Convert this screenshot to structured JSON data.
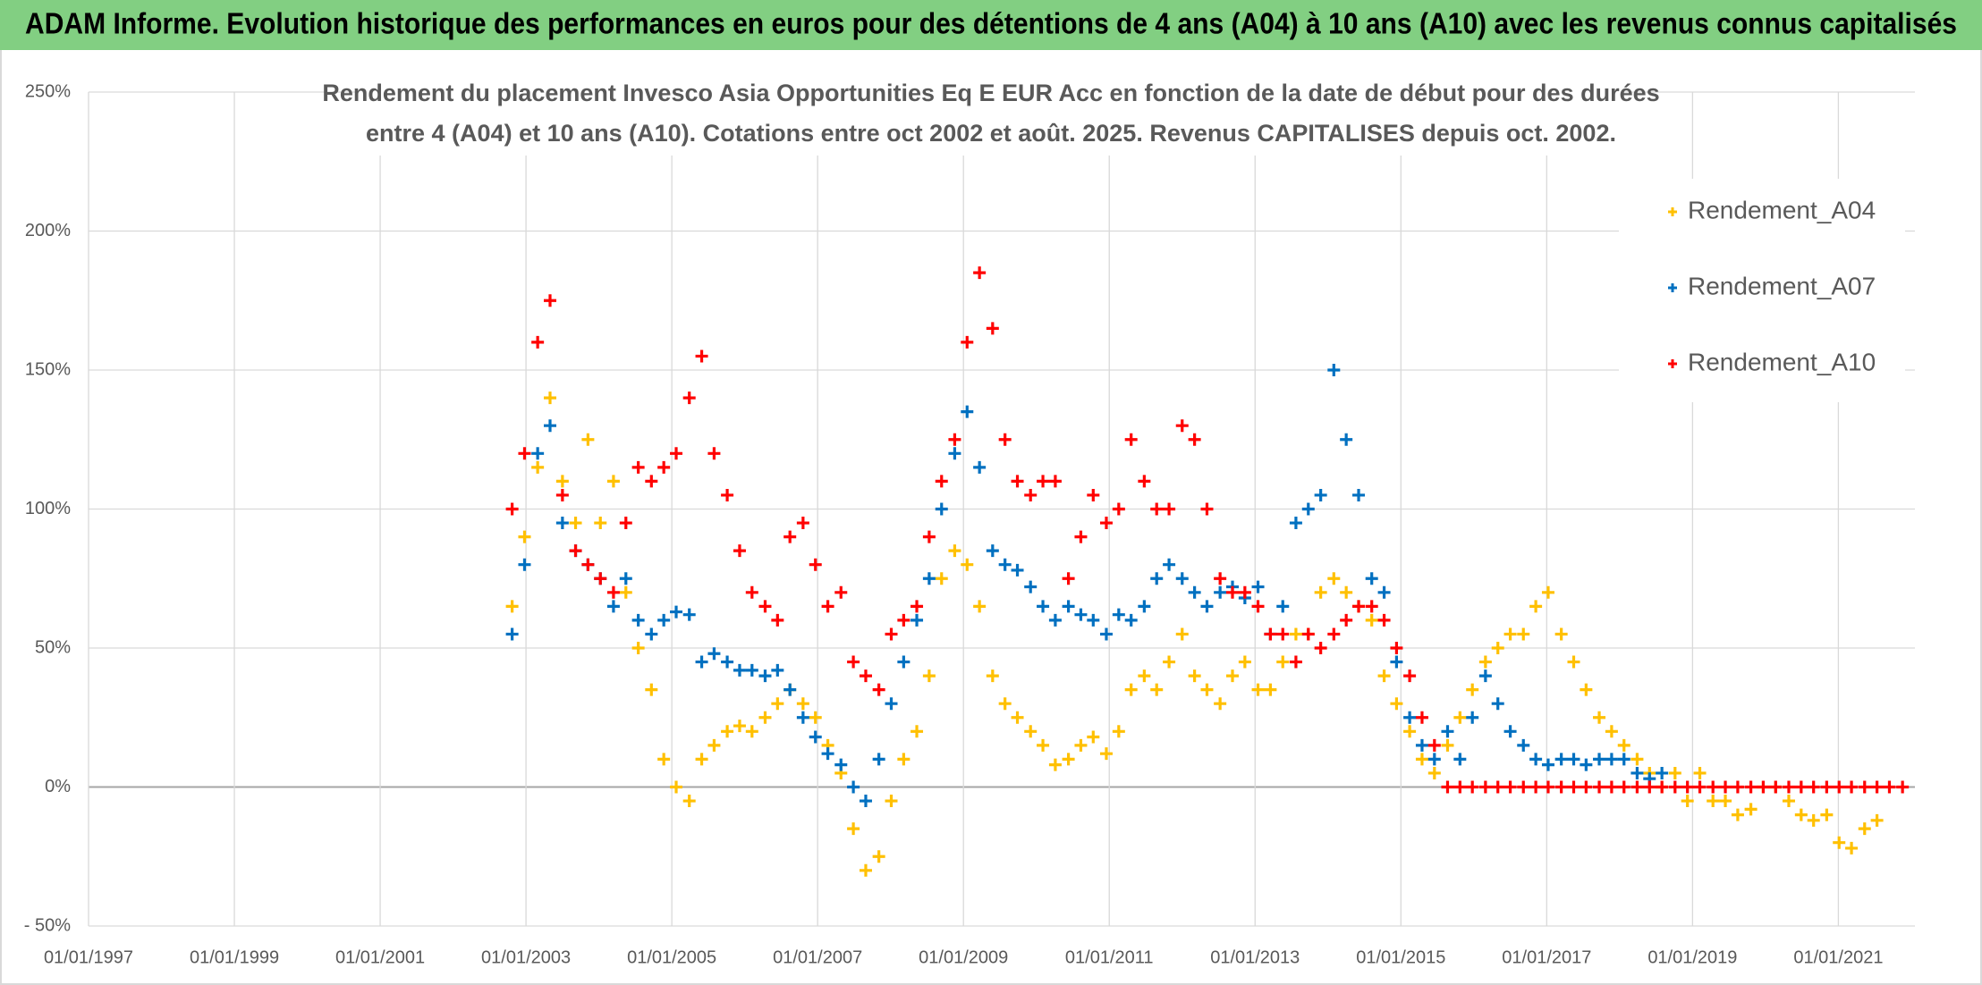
{
  "chart_data": {
    "type": "scatter",
    "title": "ADAM Informe. Evolution historique des performances en euros pour des détentions de 4 ans (A04) à 10 ans (A10) avec les revenus connus capitalisés",
    "subtitle": [
      "Rendement du placement Invesco Asia Opportunities Eq E EUR Acc en fonction de la date de début pour des durées",
      "entre 4 (A04) et 10 ans (A10). Cotations entre oct 2002 et août. 2025. Revenus CAPITALISES depuis oct. 2002."
    ],
    "legend": "upper right",
    "grid": true,
    "xlim": [
      1997,
      2022.05
    ],
    "xticks": [
      {
        "value": 1997,
        "label": "01/01/1997"
      },
      {
        "value": 1999,
        "label": "01/01/1999"
      },
      {
        "value": 2001,
        "label": "01/01/2001"
      },
      {
        "value": 2003,
        "label": "01/01/2003"
      },
      {
        "value": 2005,
        "label": "01/01/2005"
      },
      {
        "value": 2007,
        "label": "01/01/2007"
      },
      {
        "value": 2009,
        "label": "01/01/2009"
      },
      {
        "value": 2011,
        "label": "01/01/2011"
      },
      {
        "value": 2013,
        "label": "01/01/2013"
      },
      {
        "value": 2015,
        "label": "01/01/2015"
      },
      {
        "value": 2017,
        "label": "01/01/2017"
      },
      {
        "value": 2019,
        "label": "01/01/2019"
      },
      {
        "value": 2021,
        "label": "01/01/2021"
      }
    ],
    "ylim": [
      -50,
      250
    ],
    "yticks": [
      {
        "value": -50,
        "label": "- 50%"
      },
      {
        "value": 0,
        "label": "0%"
      },
      {
        "value": 50,
        "label": "50%"
      },
      {
        "value": 100,
        "label": "100%"
      },
      {
        "value": 150,
        "label": "150%"
      },
      {
        "value": 200,
        "label": "200%"
      },
      {
        "value": 250,
        "label": "250%"
      }
    ],
    "x": [
      2002.81,
      2002.98,
      2003.16,
      2003.33,
      2003.5,
      2003.68,
      2003.85,
      2004.02,
      2004.2,
      2004.37,
      2004.54,
      2004.72,
      2004.89,
      2005.06,
      2005.24,
      2005.41,
      2005.58,
      2005.76,
      2005.93,
      2006.1,
      2006.28,
      2006.45,
      2006.62,
      2006.8,
      2006.97,
      2007.14,
      2007.32,
      2007.49,
      2007.66,
      2007.84,
      2008.01,
      2008.18,
      2008.36,
      2008.53,
      2008.7,
      2008.88,
      2009.05,
      2009.22,
      2009.4,
      2009.57,
      2009.74,
      2009.92,
      2010.09,
      2010.26,
      2010.44,
      2010.61,
      2010.78,
      2010.96,
      2011.13,
      2011.3,
      2011.48,
      2011.65,
      2011.82,
      2012.0,
      2012.17,
      2012.34,
      2012.52,
      2012.69,
      2012.86,
      2013.04,
      2013.21,
      2013.38,
      2013.56,
      2013.73,
      2013.9,
      2014.08,
      2014.25,
      2014.42,
      2014.6,
      2014.77,
      2014.94,
      2015.12,
      2015.29,
      2015.46,
      2015.64,
      2015.81,
      2015.98,
      2016.16,
      2016.33,
      2016.5,
      2016.68,
      2016.85,
      2017.02,
      2017.2,
      2017.37,
      2017.54,
      2017.72,
      2017.89,
      2018.06,
      2018.24,
      2018.41,
      2018.58,
      2018.76,
      2018.93,
      2019.1,
      2019.28,
      2019.45,
      2019.62,
      2019.8,
      2019.97,
      2020.14,
      2020.32,
      2020.49,
      2020.66,
      2020.84,
      2021.01,
      2021.18,
      2021.36,
      2021.53,
      2021.7,
      2021.88
    ],
    "series": [
      {
        "name": "Rendement_A04",
        "color": "#FFC000",
        "values": [
          65,
          90,
          115,
          140,
          110,
          95,
          125,
          95,
          110,
          70,
          50,
          35,
          10,
          0,
          -5,
          10,
          15,
          20,
          22,
          20,
          25,
          30,
          35,
          30,
          25,
          15,
          5,
          -15,
          -30,
          -25,
          -5,
          10,
          20,
          40,
          75,
          85,
          80,
          65,
          40,
          30,
          25,
          20,
          15,
          8,
          10,
          15,
          18,
          12,
          20,
          35,
          40,
          35,
          45,
          55,
          40,
          35,
          30,
          40,
          45,
          35,
          35,
          45,
          55,
          55,
          70,
          75,
          70,
          65,
          60,
          40,
          30,
          20,
          10,
          5,
          15,
          25,
          35,
          45,
          50,
          55,
          55,
          65,
          70,
          55,
          45,
          35,
          25,
          20,
          15,
          10,
          5,
          0,
          5,
          -5,
          5,
          -5,
          -5,
          -10,
          -8,
          0,
          0,
          -5,
          -10,
          -12,
          -10,
          -20,
          -22,
          -15,
          -12,
          null,
          null
        ]
      },
      {
        "name": "Rendement_A07",
        "color": "#0070C0",
        "values": [
          55,
          80,
          120,
          130,
          95,
          85,
          80,
          75,
          65,
          75,
          60,
          55,
          60,
          63,
          62,
          45,
          48,
          45,
          42,
          42,
          40,
          42,
          35,
          25,
          18,
          12,
          8,
          0,
          -5,
          10,
          30,
          45,
          60,
          75,
          100,
          120,
          135,
          115,
          85,
          80,
          78,
          72,
          65,
          60,
          65,
          62,
          60,
          55,
          62,
          60,
          65,
          75,
          80,
          75,
          70,
          65,
          70,
          72,
          68,
          72,
          55,
          65,
          95,
          100,
          105,
          150,
          125,
          105,
          75,
          70,
          45,
          25,
          15,
          10,
          20,
          10,
          25,
          40,
          30,
          20,
          15,
          10,
          8,
          10,
          10,
          8,
          10,
          10,
          10,
          5,
          3,
          5,
          null,
          null,
          null,
          null,
          null,
          null,
          null,
          null,
          null,
          null,
          null,
          null,
          null,
          null,
          null,
          null,
          null,
          null,
          null
        ]
      },
      {
        "name": "Rendement_A10",
        "color": "#FF0000",
        "values": [
          100,
          120,
          160,
          175,
          105,
          85,
          80,
          75,
          70,
          95,
          115,
          110,
          115,
          120,
          140,
          155,
          120,
          105,
          85,
          70,
          65,
          60,
          90,
          95,
          80,
          65,
          70,
          45,
          40,
          35,
          55,
          60,
          65,
          90,
          110,
          125,
          160,
          185,
          165,
          125,
          110,
          105,
          110,
          110,
          75,
          90,
          105,
          95,
          100,
          125,
          110,
          100,
          100,
          130,
          125,
          100,
          75,
          70,
          70,
          65,
          55,
          55,
          45,
          55,
          50,
          55,
          60,
          65,
          65,
          60,
          50,
          40,
          25,
          15,
          0,
          0,
          0,
          0,
          0,
          0,
          0,
          0,
          0,
          0,
          0,
          0,
          0,
          0,
          0,
          0,
          0,
          0,
          0,
          0,
          0,
          0,
          0,
          0,
          0,
          0,
          0,
          0,
          0,
          0,
          0,
          0,
          0,
          0,
          0,
          0,
          0
        ]
      }
    ]
  }
}
